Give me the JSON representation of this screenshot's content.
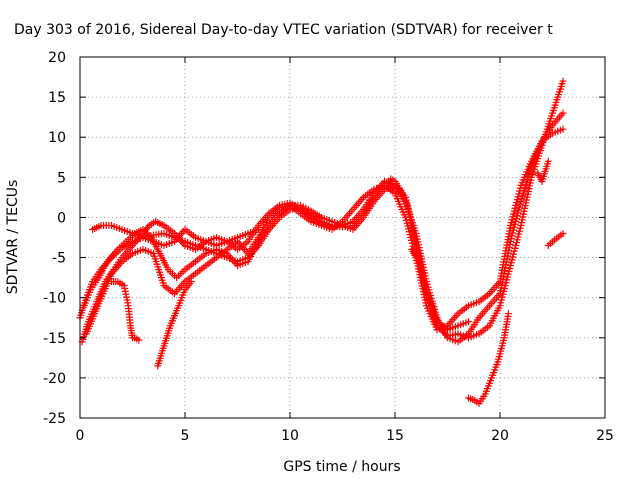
{
  "chart_data": {
    "type": "scatter",
    "title": "Day 303 of 2016, Sidereal Day-to-day VTEC variation (SDTVAR) for receiver t",
    "xlabel": "GPS time / hours",
    "ylabel": "SDTVAR / TECUs",
    "xlim": [
      0,
      25
    ],
    "ylim": [
      -25,
      20
    ],
    "xticks": [
      0,
      5,
      10,
      15,
      20,
      25
    ],
    "yticks": [
      -25,
      -20,
      -15,
      -10,
      -5,
      0,
      5,
      10,
      15,
      20
    ],
    "grid": true,
    "marker": "+",
    "series": [
      {
        "color": "#ff0000",
        "tracks": [
          [
            [
              0.0,
              -12.5
            ],
            [
              0.3,
              -10.0
            ],
            [
              0.6,
              -8.0
            ],
            [
              1.0,
              -6.5
            ],
            [
              1.5,
              -5.0
            ],
            [
              2.0,
              -3.8
            ],
            [
              2.5,
              -3.0
            ],
            [
              3.0,
              -2.5
            ],
            [
              3.5,
              -2.2
            ],
            [
              4.0,
              -2.0
            ],
            [
              4.5,
              -2.5
            ],
            [
              5.0,
              -3.0
            ],
            [
              5.5,
              -3.5
            ],
            [
              6.0,
              -4.0
            ],
            [
              6.5,
              -4.5
            ],
            [
              7.0,
              -5.0
            ],
            [
              7.5,
              -5.5
            ],
            [
              8.0,
              -5.0
            ],
            [
              8.5,
              -3.5
            ],
            [
              9.0,
              -1.5
            ],
            [
              9.5,
              0.0
            ],
            [
              10.0,
              1.0
            ],
            [
              10.5,
              1.2
            ],
            [
              11.0,
              0.5
            ],
            [
              11.5,
              -0.5
            ],
            [
              12.0,
              -1.0
            ],
            [
              12.5,
              -1.2
            ],
            [
              13.0,
              -1.0
            ],
            [
              13.5,
              0.5
            ],
            [
              14.0,
              2.5
            ],
            [
              14.5,
              4.0
            ],
            [
              14.8,
              4.8
            ],
            [
              15.0,
              4.5
            ],
            [
              15.5,
              2.5
            ],
            [
              16.0,
              -3.0
            ],
            [
              16.5,
              -9.0
            ],
            [
              17.0,
              -13.0
            ],
            [
              17.5,
              -14.0
            ],
            [
              18.0,
              -13.5
            ],
            [
              18.5,
              -13.0
            ]
          ],
          [
            [
              0.1,
              -15.5
            ],
            [
              0.4,
              -13.0
            ],
            [
              0.8,
              -10.5
            ],
            [
              1.2,
              -8.0
            ],
            [
              1.6,
              -6.5
            ],
            [
              2.0,
              -5.0
            ],
            [
              2.5,
              -3.5
            ],
            [
              3.0,
              -2.0
            ],
            [
              3.3,
              -1.0
            ],
            [
              3.6,
              -0.5
            ],
            [
              4.0,
              -1.0
            ],
            [
              4.5,
              -2.0
            ],
            [
              5.0,
              -3.5
            ],
            [
              5.5,
              -4.0
            ],
            [
              6.0,
              -3.0
            ],
            [
              6.5,
              -2.5
            ],
            [
              7.0,
              -3.0
            ],
            [
              7.5,
              -4.0
            ],
            [
              8.0,
              -3.0
            ],
            [
              8.5,
              -1.0
            ],
            [
              9.0,
              0.5
            ],
            [
              9.5,
              1.5
            ],
            [
              10.0,
              1.8
            ],
            [
              10.5,
              1.0
            ],
            [
              11.0,
              0.0
            ],
            [
              11.5,
              -0.8
            ],
            [
              12.0,
              -1.2
            ],
            [
              12.5,
              -1.0
            ],
            [
              13.0,
              -0.5
            ],
            [
              13.5,
              1.0
            ],
            [
              14.0,
              3.0
            ],
            [
              14.5,
              4.5
            ],
            [
              14.8,
              4.2
            ],
            [
              15.2,
              3.5
            ],
            [
              15.6,
              1.5
            ],
            [
              16.0,
              -4.0
            ],
            [
              16.5,
              -10.0
            ],
            [
              17.0,
              -13.5
            ],
            [
              17.5,
              -14.8
            ],
            [
              18.0,
              -14.5
            ],
            [
              18.5,
              -15.0
            ],
            [
              19.0,
              -14.5
            ],
            [
              19.5,
              -13.5
            ],
            [
              20.0,
              -11.0
            ],
            [
              20.5,
              -6.0
            ],
            [
              21.0,
              -1.0
            ],
            [
              21.5,
              5.0
            ],
            [
              22.0,
              9.0
            ],
            [
              22.5,
              13.0
            ],
            [
              23.0,
              17.0
            ]
          ],
          [
            [
              0.2,
              -11.0
            ],
            [
              0.5,
              -9.0
            ],
            [
              0.9,
              -7.5
            ],
            [
              1.3,
              -5.5
            ],
            [
              1.8,
              -4.0
            ],
            [
              2.2,
              -3.0
            ],
            [
              2.6,
              -2.0
            ],
            [
              3.0,
              -1.5
            ],
            [
              3.4,
              -2.5
            ],
            [
              3.8,
              -4.5
            ],
            [
              4.2,
              -6.5
            ],
            [
              4.6,
              -7.5
            ],
            [
              5.0,
              -6.5
            ],
            [
              5.5,
              -5.5
            ],
            [
              6.0,
              -4.5
            ],
            [
              6.5,
              -4.0
            ],
            [
              7.0,
              -4.5
            ],
            [
              7.5,
              -6.0
            ],
            [
              8.0,
              -5.5
            ],
            [
              8.5,
              -3.0
            ],
            [
              9.0,
              -1.0
            ],
            [
              9.5,
              0.5
            ],
            [
              10.0,
              1.5
            ],
            [
              10.5,
              1.5
            ],
            [
              11.0,
              0.8
            ],
            [
              11.5,
              0.0
            ],
            [
              12.0,
              -0.5
            ],
            [
              12.5,
              -1.0
            ],
            [
              13.0,
              -1.5
            ],
            [
              13.5,
              0.0
            ],
            [
              14.0,
              2.0
            ],
            [
              14.5,
              3.5
            ],
            [
              15.0,
              3.8
            ],
            [
              15.5,
              2.0
            ],
            [
              16.0,
              -2.0
            ],
            [
              16.5,
              -8.0
            ],
            [
              17.0,
              -12.5
            ],
            [
              17.5,
              -15.0
            ],
            [
              18.0,
              -15.5
            ],
            [
              18.5,
              -14.5
            ],
            [
              19.0,
              -12.5
            ],
            [
              19.5,
              -11.0
            ],
            [
              20.0,
              -9.5
            ],
            [
              20.5,
              -3.0
            ],
            [
              21.0,
              2.0
            ],
            [
              21.5,
              6.5
            ],
            [
              22.0,
              9.5
            ],
            [
              22.5,
              11.5
            ],
            [
              23.0,
              13.0
            ]
          ],
          [
            [
              0.3,
              -14.5
            ],
            [
              0.7,
              -12.0
            ],
            [
              1.1,
              -9.5
            ],
            [
              1.5,
              -7.0
            ],
            [
              2.0,
              -5.5
            ],
            [
              2.5,
              -4.5
            ],
            [
              3.0,
              -4.0
            ],
            [
              3.5,
              -4.5
            ],
            [
              4.0,
              -8.5
            ],
            [
              4.5,
              -9.5
            ],
            [
              5.0,
              -8.0
            ],
            [
              5.5,
              -7.0
            ],
            [
              6.0,
              -6.0
            ],
            [
              6.5,
              -5.0
            ],
            [
              7.0,
              -4.0
            ],
            [
              7.5,
              -3.0
            ],
            [
              8.0,
              -4.5
            ],
            [
              8.5,
              -2.5
            ],
            [
              9.0,
              0.0
            ],
            [
              9.5,
              1.2
            ],
            [
              10.0,
              1.5
            ],
            [
              10.5,
              0.5
            ],
            [
              11.0,
              -0.5
            ],
            [
              11.5,
              -1.0
            ],
            [
              12.0,
              -1.5
            ],
            [
              12.5,
              -0.5
            ],
            [
              13.0,
              1.0
            ],
            [
              13.5,
              2.5
            ],
            [
              14.0,
              3.5
            ],
            [
              14.5,
              4.0
            ],
            [
              15.0,
              3.0
            ],
            [
              15.5,
              0.0
            ],
            [
              16.0,
              -5.0
            ],
            [
              16.5,
              -11.0
            ],
            [
              17.0,
              -14.0
            ],
            [
              17.5,
              -13.5
            ],
            [
              18.0,
              -12.0
            ],
            [
              18.5,
              -11.0
            ],
            [
              19.0,
              -10.5
            ],
            [
              19.5,
              -9.5
            ],
            [
              20.0,
              -8.0
            ],
            [
              20.5,
              -1.0
            ],
            [
              21.0,
              4.0
            ],
            [
              21.5,
              7.0
            ],
            [
              22.0,
              9.5
            ],
            [
              22.5,
              10.5
            ],
            [
              23.0,
              11.0
            ]
          ],
          [
            [
              0.6,
              -1.5
            ],
            [
              1.0,
              -1.0
            ],
            [
              1.5,
              -1.0
            ],
            [
              2.0,
              -1.5
            ],
            [
              2.5,
              -2.0
            ],
            [
              3.0,
              -2.5
            ],
            [
              3.5,
              -3.0
            ],
            [
              4.0,
              -3.5
            ],
            [
              4.5,
              -3.0
            ],
            [
              5.0,
              -1.5
            ],
            [
              5.5,
              -2.5
            ],
            [
              6.0,
              -3.0
            ],
            [
              6.5,
              -3.5
            ],
            [
              7.0,
              -3.0
            ],
            [
              7.5,
              -2.5
            ],
            [
              8.0,
              -2.0
            ],
            [
              8.5,
              -1.5
            ]
          ],
          [
            [
              1.5,
              -8.0
            ],
            [
              1.8,
              -8.0
            ],
            [
              2.1,
              -8.5
            ],
            [
              2.3,
              -11.0
            ],
            [
              2.4,
              -13.5
            ],
            [
              2.5,
              -15.0
            ]
          ],
          [
            [
              3.7,
              -18.5
            ],
            [
              4.0,
              -16.0
            ],
            [
              4.3,
              -13.5
            ],
            [
              4.7,
              -11.0
            ],
            [
              5.0,
              -9.0
            ],
            [
              5.3,
              -8.0
            ]
          ],
          [
            [
              2.6,
              -15.0
            ],
            [
              2.8,
              -15.3
            ]
          ],
          [
            [
              18.5,
              -22.5
            ],
            [
              18.8,
              -22.8
            ],
            [
              19.0,
              -23.2
            ],
            [
              19.3,
              -22.0
            ],
            [
              19.6,
              -20.0
            ],
            [
              19.9,
              -18.0
            ],
            [
              20.2,
              -15.0
            ],
            [
              20.4,
              -12.0
            ]
          ],
          [
            [
              15.8,
              -4.0
            ],
            [
              16.0,
              -5.0
            ]
          ],
          [
            [
              21.8,
              5.5
            ],
            [
              22.0,
              4.5
            ],
            [
              22.3,
              7.0
            ]
          ],
          [
            [
              22.3,
              -3.5
            ],
            [
              22.6,
              -2.8
            ],
            [
              23.0,
              -2.0
            ]
          ]
        ]
      }
    ]
  }
}
